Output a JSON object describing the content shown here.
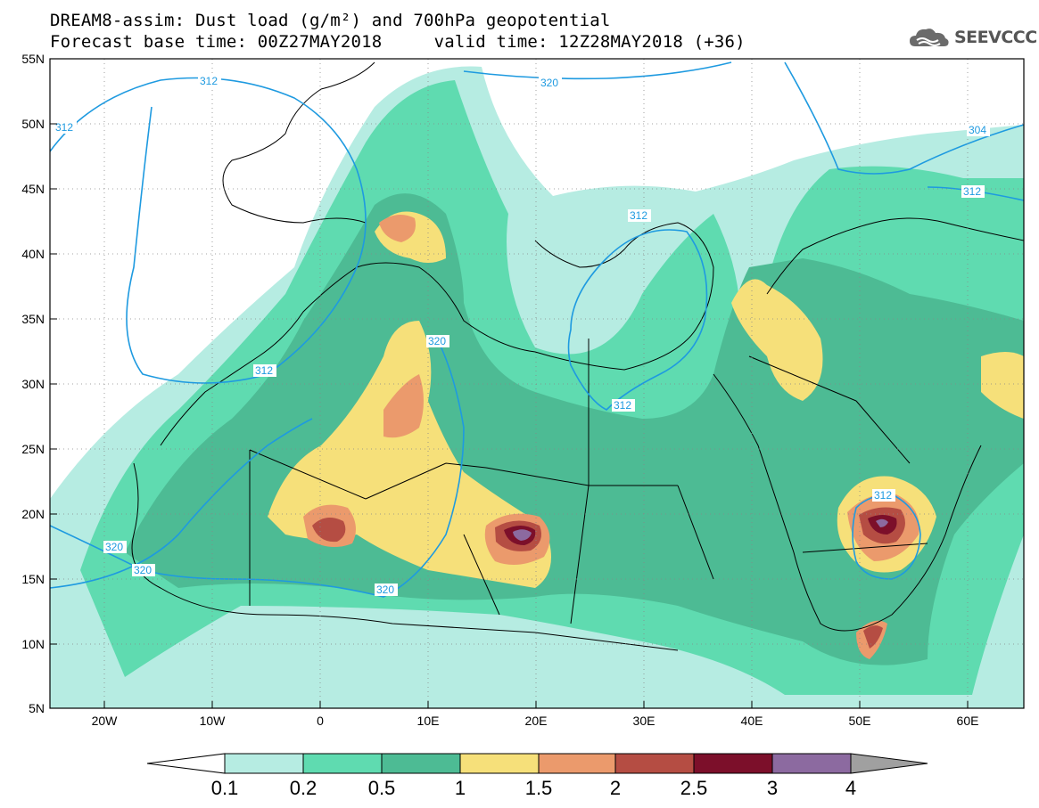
{
  "header": {
    "title_line1": "DREAM8-assim: Dust load (g/m²) and 700hPa geopotential",
    "title_line2": "Forecast base time: 00Z27MAY2018     valid time: 12Z28MAY2018 (+36)"
  },
  "logo": {
    "text": "SEEVCCC",
    "icon": "cloud-icon"
  },
  "axes": {
    "lat_labels": [
      "55N",
      "50N",
      "45N",
      "40N",
      "35N",
      "30N",
      "25N",
      "20N",
      "15N",
      "10N",
      "5N"
    ],
    "lon_labels": [
      "20W",
      "10W",
      "0",
      "10E",
      "20E",
      "30E",
      "40E",
      "50E",
      "60E"
    ]
  },
  "contours": {
    "labels": [
      "312",
      "320",
      "312",
      "304",
      "312",
      "312",
      "320",
      "312",
      "312",
      "320",
      "320",
      "320",
      "312"
    ]
  },
  "colorbar": {
    "colors": [
      "#ffffff",
      "#b6ece2",
      "#5fdbb0",
      "#4dbb94",
      "#f6e07a",
      "#eb9a6c",
      "#b54d43",
      "#7c0f2a",
      "#8c6aa0",
      "#a0a0a0"
    ],
    "labels": [
      "0.1",
      "0.2",
      "0.5",
      "1",
      "1.5",
      "2",
      "2.5",
      "3",
      "4"
    ]
  },
  "colors": {
    "contour": "#1e9ae0",
    "border": "#000000",
    "land": "#ffffff"
  }
}
